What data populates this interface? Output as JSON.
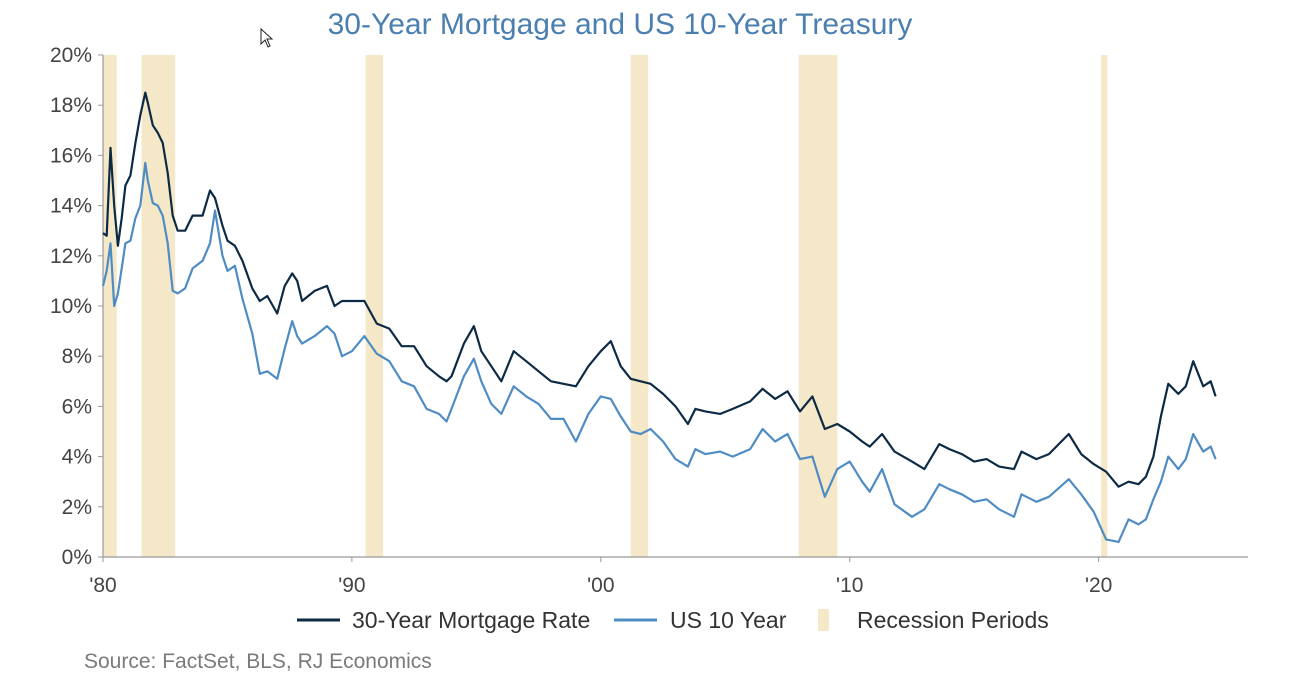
{
  "colors": {
    "mortgage": "#0d2a45",
    "treasury": "#4f8cc4",
    "recession": "#f5e8c8",
    "title": "#4a7fb0",
    "axis": "#999999"
  },
  "chart_data": {
    "type": "line",
    "title": "30-Year Mortgage and US 10-Year Treasury",
    "source": "Source: FactSet, BLS,  RJ Economics",
    "x_range": [
      1980.0,
      2026.0
    ],
    "ylim": [
      0,
      20
    ],
    "y_ticks": [
      0,
      2,
      4,
      6,
      8,
      10,
      12,
      14,
      16,
      18,
      20
    ],
    "y_tick_labels": [
      "0%",
      "2%",
      "4%",
      "6%",
      "8%",
      "10%",
      "12%",
      "14%",
      "16%",
      "18%",
      "20%"
    ],
    "x_ticks": [
      1980,
      1990,
      2000,
      2010,
      2020
    ],
    "x_tick_labels": [
      "'80",
      "'90",
      "'00",
      "'10",
      "'20"
    ],
    "grid": false,
    "legend_position": "bottom",
    "recessions": [
      [
        1980.0,
        1980.55
      ],
      [
        1981.55,
        1982.9
      ],
      [
        1990.55,
        1991.25
      ],
      [
        2001.2,
        2001.9
      ],
      [
        2007.95,
        2009.5
      ],
      [
        2020.1,
        2020.35
      ]
    ],
    "series": [
      {
        "name": "30-Year Mortgage Rate",
        "x": [
          1980.0,
          1980.15,
          1980.3,
          1980.45,
          1980.6,
          1980.75,
          1980.9,
          1981.1,
          1981.3,
          1981.5,
          1981.7,
          1981.8,
          1982.0,
          1982.2,
          1982.4,
          1982.6,
          1982.8,
          1983.0,
          1983.3,
          1983.6,
          1984.0,
          1984.3,
          1984.5,
          1984.8,
          1985.0,
          1985.3,
          1985.6,
          1986.0,
          1986.3,
          1986.6,
          1987.0,
          1987.3,
          1987.6,
          1987.8,
          1988.0,
          1988.5,
          1989.0,
          1989.3,
          1989.6,
          1990.0,
          1990.5,
          1991.0,
          1991.5,
          1992.0,
          1992.5,
          1993.0,
          1993.5,
          1993.8,
          1994.0,
          1994.5,
          1994.9,
          1995.2,
          1995.6,
          1996.0,
          1996.5,
          1997.0,
          1997.5,
          1998.0,
          1998.5,
          1999.0,
          1999.5,
          2000.0,
          2000.4,
          2000.8,
          2001.2,
          2001.6,
          2002.0,
          2002.5,
          2003.0,
          2003.5,
          2003.8,
          2004.2,
          2004.8,
          2005.3,
          2006.0,
          2006.5,
          2007.0,
          2007.5,
          2008.0,
          2008.5,
          2009.0,
          2009.5,
          2010.0,
          2010.5,
          2010.8,
          2011.3,
          2011.8,
          2012.5,
          2013.0,
          2013.6,
          2014.0,
          2014.5,
          2015.0,
          2015.5,
          2016.0,
          2016.6,
          2016.9,
          2017.5,
          2018.0,
          2018.8,
          2019.3,
          2019.8,
          2020.3,
          2020.8,
          2021.2,
          2021.6,
          2021.9,
          2022.2,
          2022.5,
          2022.8,
          2023.2,
          2023.5,
          2023.8,
          2024.2,
          2024.5,
          2024.7
        ],
        "values": [
          12.9,
          12.8,
          16.3,
          14.0,
          12.4,
          13.5,
          14.8,
          15.2,
          16.5,
          17.6,
          18.5,
          18.1,
          17.2,
          16.9,
          16.5,
          15.3,
          13.6,
          13.0,
          13.0,
          13.6,
          13.6,
          14.6,
          14.3,
          13.2,
          12.6,
          12.4,
          11.8,
          10.7,
          10.2,
          10.4,
          9.7,
          10.8,
          11.3,
          11.0,
          10.2,
          10.6,
          10.8,
          10.0,
          10.2,
          10.2,
          10.2,
          9.3,
          9.1,
          8.4,
          8.4,
          7.6,
          7.2,
          7.0,
          7.2,
          8.5,
          9.2,
          8.2,
          7.6,
          7.0,
          8.2,
          7.8,
          7.4,
          7.0,
          6.9,
          6.8,
          7.6,
          8.2,
          8.6,
          7.6,
          7.1,
          7.0,
          6.9,
          6.5,
          6.0,
          5.3,
          5.9,
          5.8,
          5.7,
          5.9,
          6.2,
          6.7,
          6.3,
          6.6,
          5.8,
          6.4,
          5.1,
          5.3,
          5.0,
          4.6,
          4.4,
          4.9,
          4.2,
          3.8,
          3.5,
          4.5,
          4.3,
          4.1,
          3.8,
          3.9,
          3.6,
          3.5,
          4.2,
          3.9,
          4.1,
          4.9,
          4.1,
          3.7,
          3.4,
          2.8,
          3.0,
          2.9,
          3.2,
          4.0,
          5.6,
          6.9,
          6.5,
          6.8,
          7.8,
          6.8,
          7.0,
          6.4
        ]
      },
      {
        "name": "US 10 Year",
        "x": [
          1980.0,
          1980.15,
          1980.3,
          1980.45,
          1980.6,
          1980.75,
          1980.9,
          1981.1,
          1981.3,
          1981.5,
          1981.7,
          1981.8,
          1982.0,
          1982.2,
          1982.4,
          1982.6,
          1982.8,
          1983.0,
          1983.3,
          1983.6,
          1984.0,
          1984.3,
          1984.5,
          1984.8,
          1985.0,
          1985.3,
          1985.6,
          1986.0,
          1986.3,
          1986.6,
          1987.0,
          1987.3,
          1987.6,
          1987.8,
          1988.0,
          1988.5,
          1989.0,
          1989.3,
          1989.6,
          1990.0,
          1990.5,
          1991.0,
          1991.5,
          1992.0,
          1992.5,
          1993.0,
          1993.5,
          1993.8,
          1994.0,
          1994.5,
          1994.9,
          1995.2,
          1995.6,
          1996.0,
          1996.5,
          1997.0,
          1997.5,
          1998.0,
          1998.5,
          1999.0,
          1999.5,
          2000.0,
          2000.4,
          2000.8,
          2001.2,
          2001.6,
          2002.0,
          2002.5,
          2003.0,
          2003.5,
          2003.8,
          2004.2,
          2004.8,
          2005.3,
          2006.0,
          2006.5,
          2007.0,
          2007.5,
          2008.0,
          2008.5,
          2009.0,
          2009.5,
          2010.0,
          2010.5,
          2010.8,
          2011.3,
          2011.8,
          2012.5,
          2013.0,
          2013.6,
          2014.0,
          2014.5,
          2015.0,
          2015.5,
          2016.0,
          2016.6,
          2016.9,
          2017.5,
          2018.0,
          2018.8,
          2019.3,
          2019.8,
          2020.3,
          2020.8,
          2021.2,
          2021.6,
          2021.9,
          2022.2,
          2022.5,
          2022.8,
          2023.2,
          2023.5,
          2023.8,
          2024.2,
          2024.5,
          2024.7
        ],
        "values": [
          10.8,
          11.4,
          12.5,
          10.0,
          10.5,
          11.5,
          12.5,
          12.6,
          13.5,
          14.0,
          15.7,
          15.0,
          14.1,
          14.0,
          13.6,
          12.5,
          10.6,
          10.5,
          10.7,
          11.5,
          11.8,
          12.5,
          13.8,
          12.0,
          11.4,
          11.6,
          10.3,
          8.9,
          7.3,
          7.4,
          7.1,
          8.3,
          9.4,
          8.8,
          8.5,
          8.8,
          9.2,
          8.9,
          8.0,
          8.2,
          8.8,
          8.1,
          7.8,
          7.0,
          6.8,
          5.9,
          5.7,
          5.4,
          5.9,
          7.2,
          7.9,
          7.0,
          6.1,
          5.7,
          6.8,
          6.4,
          6.1,
          5.5,
          5.5,
          4.6,
          5.7,
          6.4,
          6.3,
          5.6,
          5.0,
          4.9,
          5.1,
          4.6,
          3.9,
          3.6,
          4.3,
          4.1,
          4.2,
          4.0,
          4.3,
          5.1,
          4.6,
          4.9,
          3.9,
          4.0,
          2.4,
          3.5,
          3.8,
          3.0,
          2.6,
          3.5,
          2.1,
          1.6,
          1.9,
          2.9,
          2.7,
          2.5,
          2.2,
          2.3,
          1.9,
          1.6,
          2.5,
          2.2,
          2.4,
          3.1,
          2.5,
          1.8,
          0.7,
          0.6,
          1.5,
          1.3,
          1.5,
          2.3,
          3.0,
          4.0,
          3.5,
          3.9,
          4.9,
          4.2,
          4.4,
          3.9
        ]
      },
      {
        "name": "Recession Periods"
      }
    ]
  }
}
